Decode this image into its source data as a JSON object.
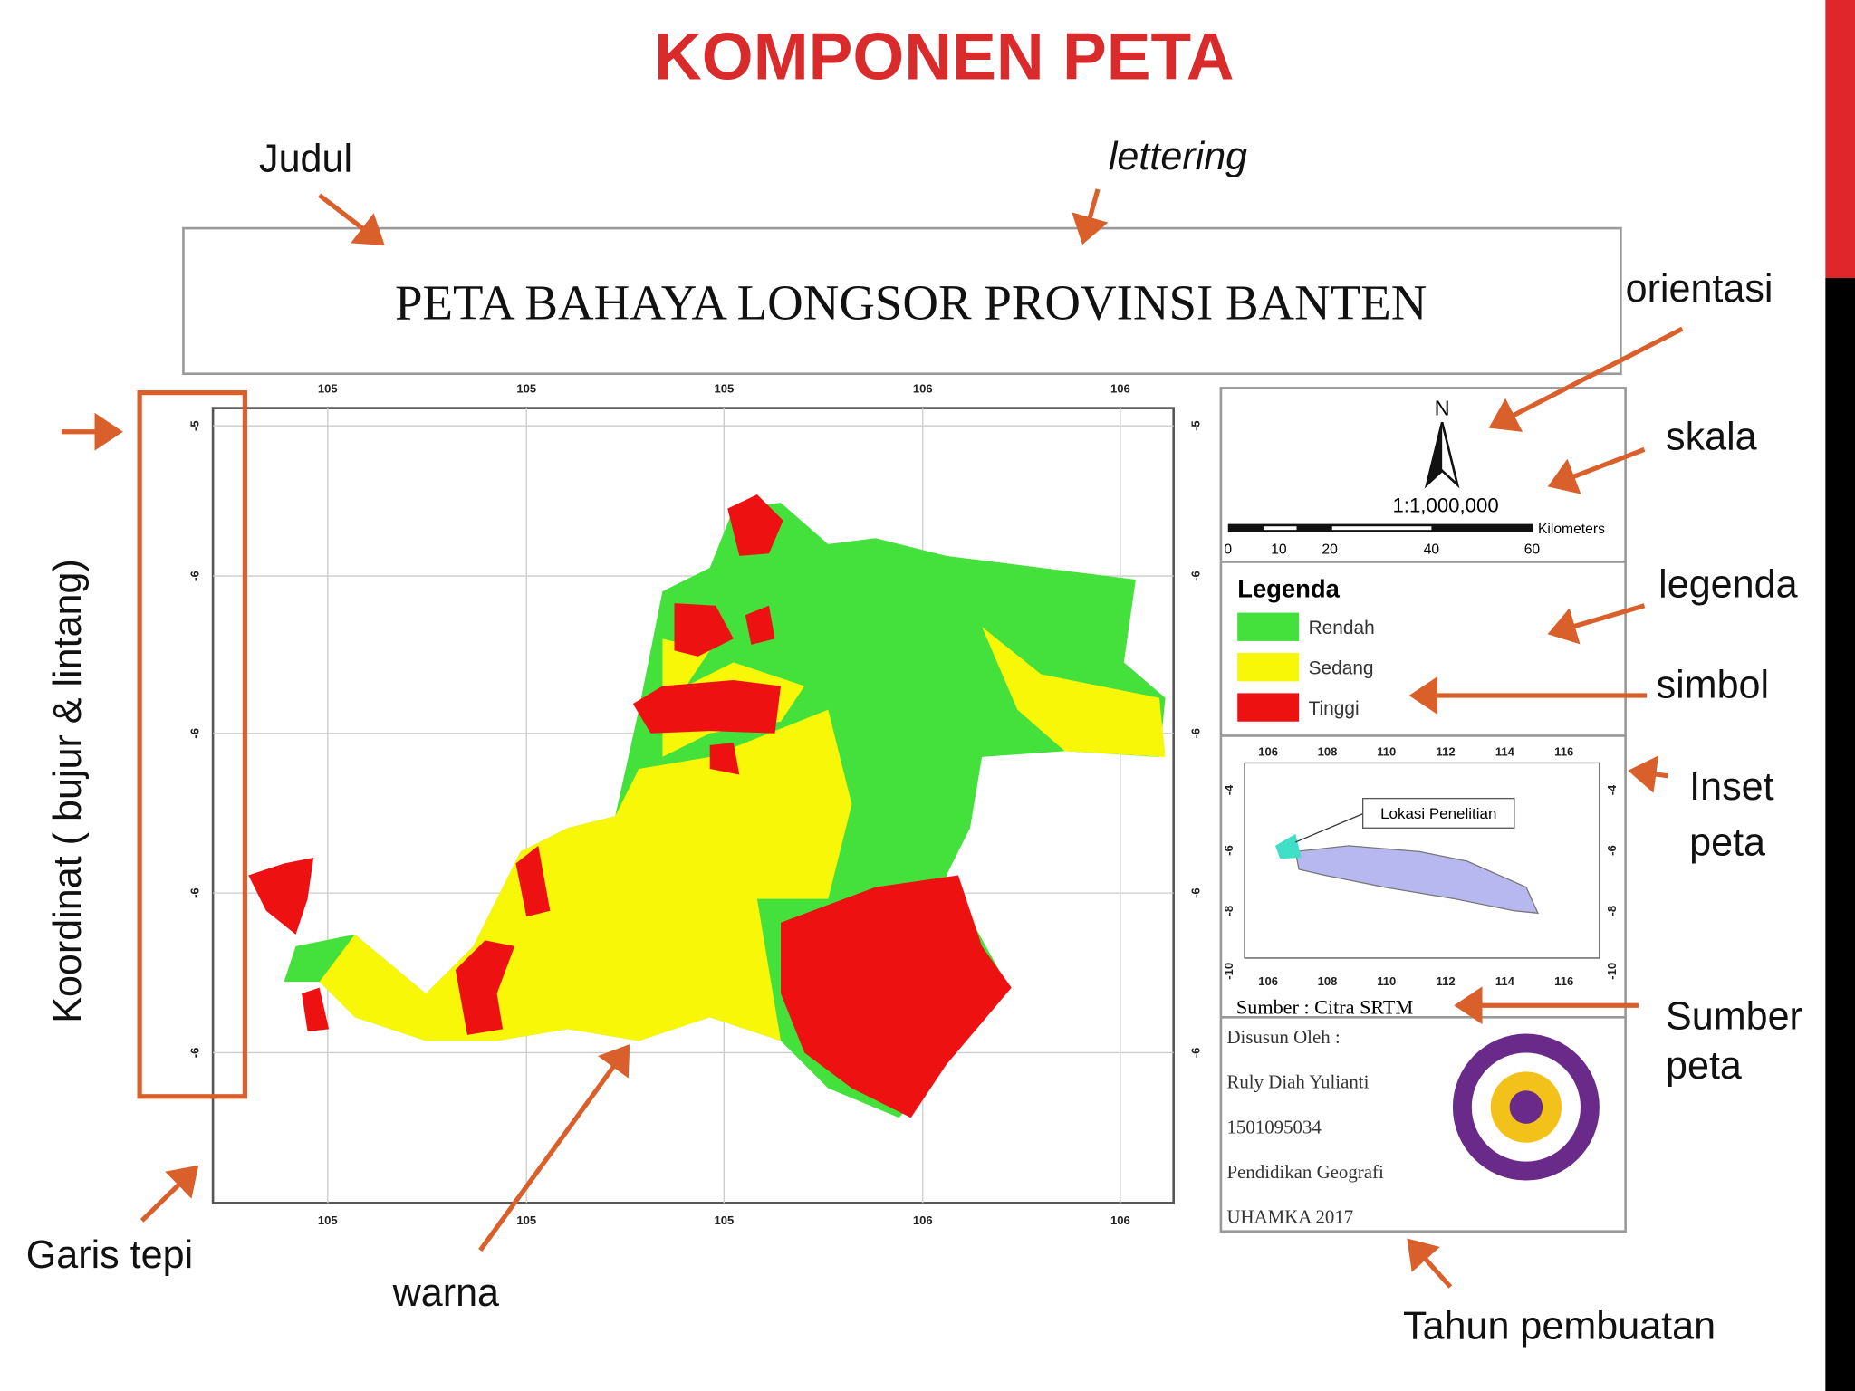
{
  "title": "KOMPONEN PETA",
  "annotations": {
    "judul": "Judul",
    "lettering": "lettering",
    "orientasi": "orientasi",
    "skala": "skala",
    "legenda": "legenda",
    "simbol": "simbol",
    "inset": [
      "Inset",
      "peta"
    ],
    "koordinat": "Koordinat ( bujur & lintang)",
    "garis_tepi": "Garis tepi",
    "warna": "warna",
    "sumber": [
      "Sumber",
      "peta"
    ],
    "tahun": "Tahun pembuatan"
  },
  "map": {
    "title": "PETA BAHAYA LONGSOR PROVINSI BANTEN",
    "x_ticks": [
      "105",
      "105",
      "105",
      "106",
      "106"
    ],
    "y_ticks": [
      "-5",
      "-6",
      "-6",
      "-6",
      "-6"
    ],
    "north": "N",
    "scale": "1:1,000,000",
    "scale_unit": "Kilometers",
    "scale_ticks": [
      "0",
      "10",
      "20",
      "40",
      "60"
    ],
    "legend": {
      "title": "Legenda",
      "items": [
        {
          "label": "Rendah",
          "color": "#44e03c"
        },
        {
          "label": "Sedang",
          "color": "#f7f707"
        },
        {
          "label": "Tinggi",
          "color": "#ee1111"
        }
      ]
    },
    "inset": {
      "label": "Lokasi Penelitian",
      "x_ticks": [
        "106",
        "108",
        "110",
        "112",
        "114",
        "116"
      ],
      "y_ticks": [
        "-4",
        "-6",
        "-8",
        "-10"
      ]
    },
    "source": "Sumber : Citra SRTM",
    "credits": [
      "Disusun Oleh :",
      "Ruly Diah Yulianti",
      "1501095034",
      "Pendidikan Geografi",
      "UHAMKA  2017"
    ]
  }
}
